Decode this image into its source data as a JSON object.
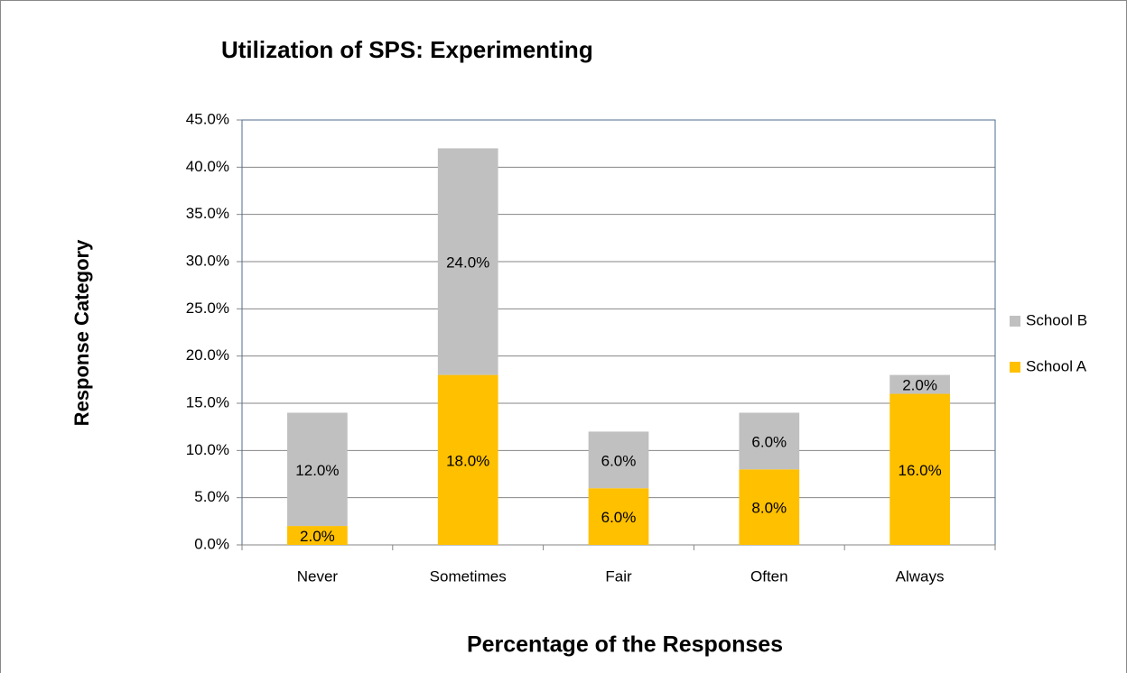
{
  "chart_data": {
    "type": "stacked_bar",
    "title": "Utilization of SPS: Experimenting",
    "y_label": "Response Category",
    "x_label": "Percentage of the Responses",
    "categories": [
      "Never",
      "Sometimes",
      "Fair",
      "Often",
      "Always"
    ],
    "series": [
      {
        "name": "School A",
        "color": "#ffc000",
        "values": [
          2,
          18,
          6,
          8,
          16
        ],
        "value_labels": [
          "2.0%",
          "18.0%",
          "6.0%",
          "8.0%",
          "16.0%"
        ]
      },
      {
        "name": "School B",
        "color": "#c0c0c0",
        "values": [
          12,
          24,
          6,
          6,
          2
        ],
        "value_labels": [
          "12.0%",
          "24.0%",
          "6.0%",
          "6.0%",
          "2.0%"
        ]
      }
    ],
    "ylim": [
      0,
      45
    ],
    "yticks": [
      {
        "value": 0,
        "label": "0.0%"
      },
      {
        "value": 5,
        "label": "5.0%"
      },
      {
        "value": 10,
        "label": "10.0%"
      },
      {
        "value": 15,
        "label": "15.0%"
      },
      {
        "value": 20,
        "label": "20.0%"
      },
      {
        "value": 25,
        "label": "25.0%"
      },
      {
        "value": 30,
        "label": "30.0%"
      },
      {
        "value": 35,
        "label": "35.0%"
      },
      {
        "value": 40,
        "label": "40.0%"
      },
      {
        "value": 45,
        "label": "45.0%"
      }
    ],
    "grid": true,
    "legend": "right"
  }
}
